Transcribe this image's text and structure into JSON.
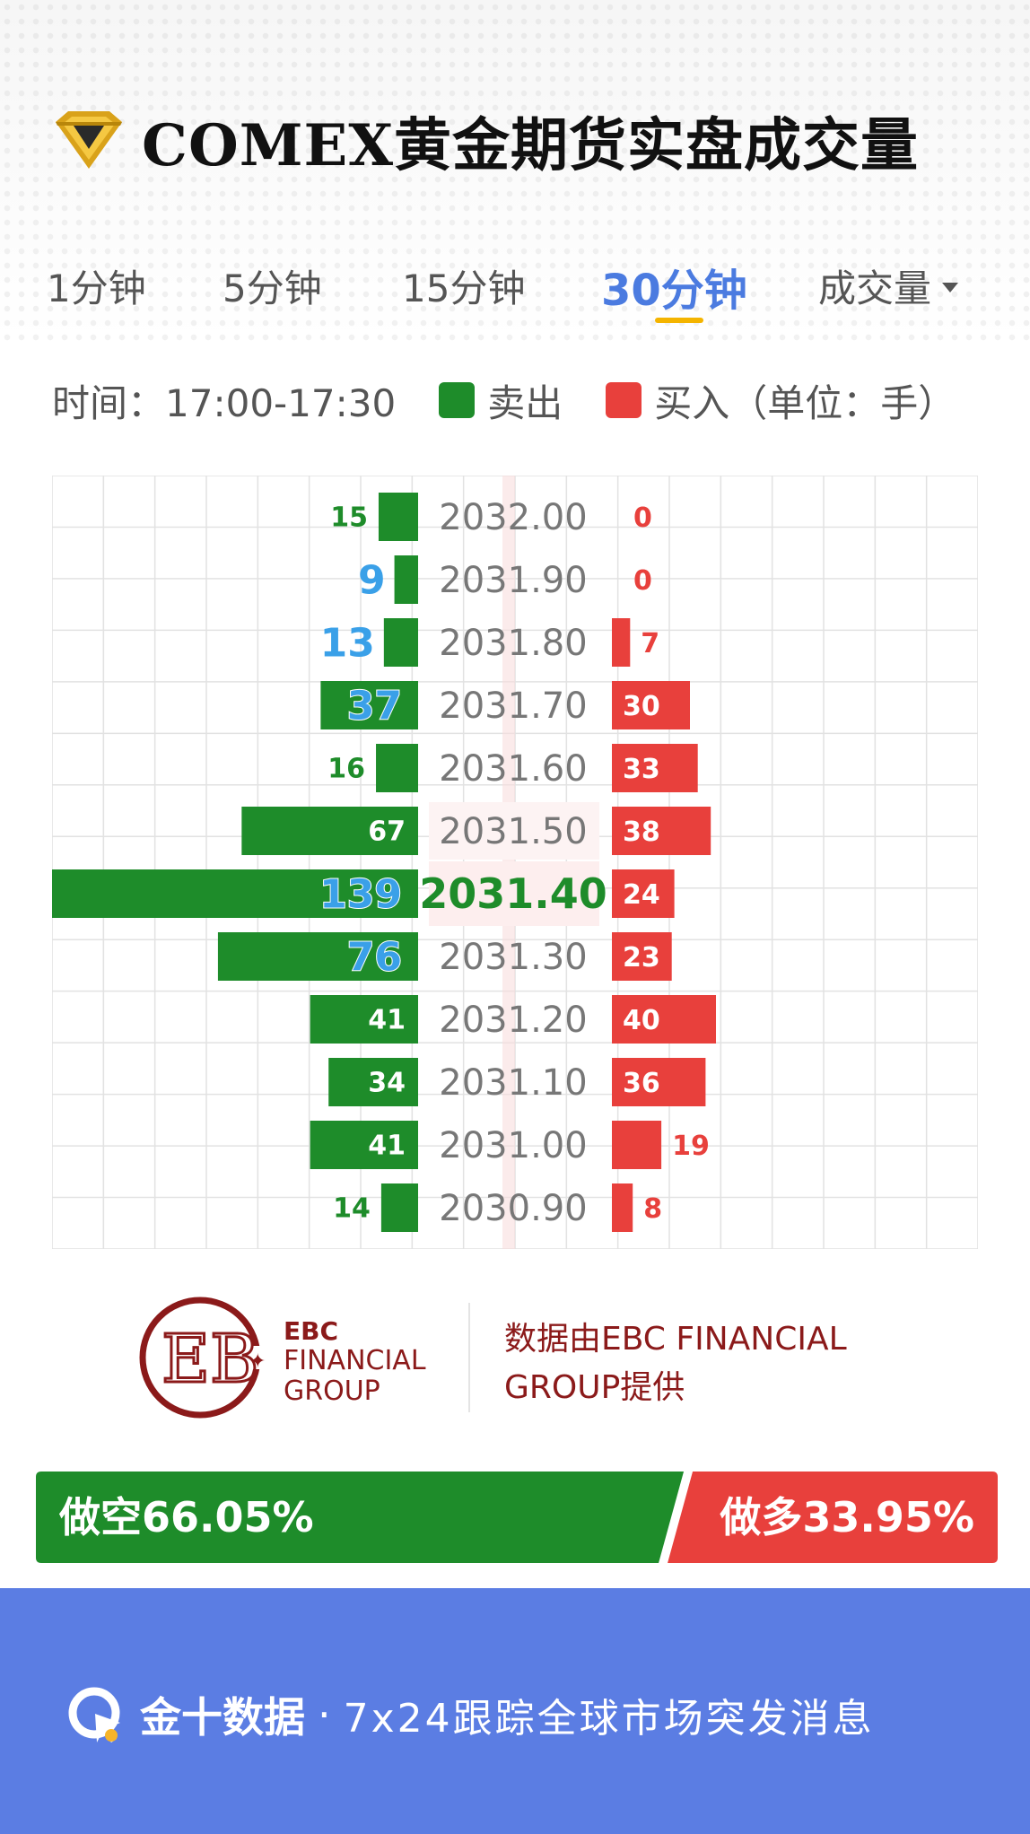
{
  "header": {
    "title": "COMEX黄金期货实盘成交量"
  },
  "tabs": [
    {
      "label": "1分钟",
      "active": false
    },
    {
      "label": "5分钟",
      "active": false
    },
    {
      "label": "15分钟",
      "active": false
    },
    {
      "label": "30分钟",
      "active": true
    },
    {
      "label": "成交量",
      "active": false,
      "dropdown": true
    }
  ],
  "legend": {
    "time_label": "时间：17:00-17:30",
    "sell_label": "卖出",
    "buy_label": "买入（单位：手）",
    "sell_color": "#1e8c2a",
    "buy_color": "#e8403c"
  },
  "chart_data": {
    "type": "bar",
    "layout": "diverging-horizontal",
    "highlight_price": "2031.40",
    "rows": [
      {
        "price": "2032.00",
        "sell": 15,
        "buy": 0
      },
      {
        "price": "2031.90",
        "sell": 9,
        "buy": 0
      },
      {
        "price": "2031.80",
        "sell": 13,
        "buy": 7
      },
      {
        "price": "2031.70",
        "sell": 37,
        "buy": 30
      },
      {
        "price": "2031.60",
        "sell": 16,
        "buy": 33
      },
      {
        "price": "2031.50",
        "sell": 67,
        "buy": 38
      },
      {
        "price": "2031.40",
        "sell": 139,
        "buy": 24
      },
      {
        "price": "2031.30",
        "sell": 76,
        "buy": 23
      },
      {
        "price": "2031.20",
        "sell": 41,
        "buy": 40
      },
      {
        "price": "2031.10",
        "sell": 34,
        "buy": 36
      },
      {
        "price": "2031.00",
        "sell": 41,
        "buy": 19
      },
      {
        "price": "2030.90",
        "sell": 14,
        "buy": 8
      }
    ],
    "emphasized_sell_values": [
      9,
      13,
      37,
      139,
      76
    ],
    "emphasized_color": "#3aa0e8",
    "grid": true
  },
  "provider": {
    "brand_line1": "EBC",
    "brand_line2": "FINANCIAL",
    "brand_line3": "GROUP",
    "caption": "数据由EBC FINANCIAL GROUP提供",
    "color": "#8b1a1a"
  },
  "ratio": {
    "short_label": "做空66.05%",
    "long_label": "做多33.95%",
    "short_pct": 66.05,
    "long_pct": 33.95,
    "short_color": "#1e8c2a",
    "long_color": "#e8403c"
  },
  "footer": {
    "brand": "金十数据",
    "separator": "·",
    "slogan": "7x24跟踪全球市场突发消息",
    "bg_color": "#5b7de3"
  }
}
